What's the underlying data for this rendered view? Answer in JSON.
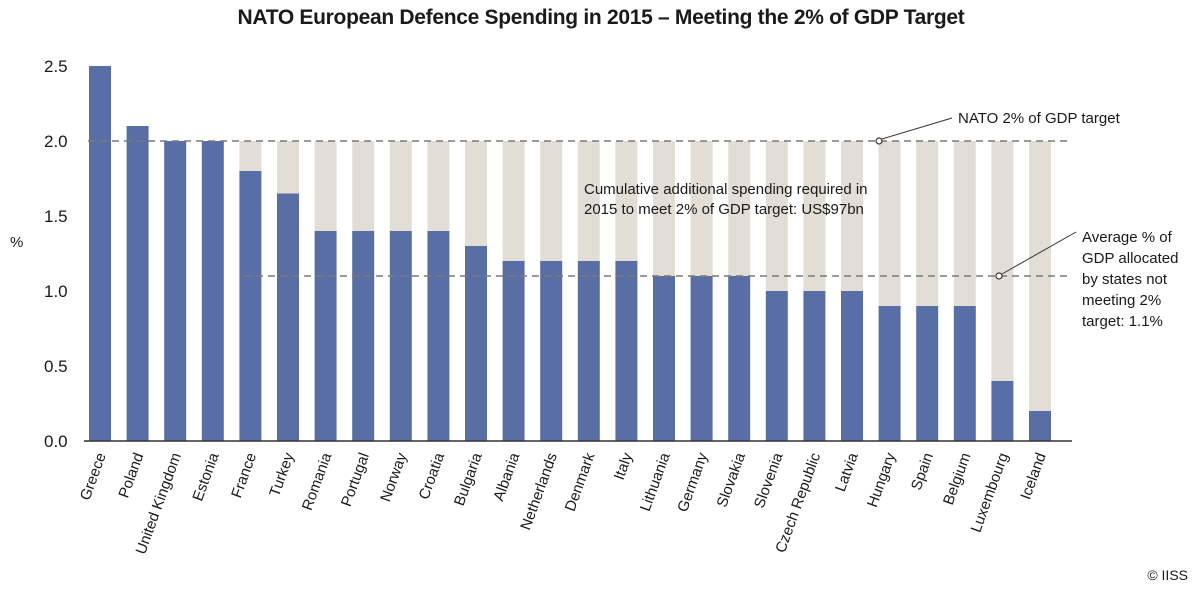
{
  "chart_data": {
    "type": "bar",
    "title": "NATO European Defence Spending in 2015 – Meeting the 2% of GDP Target",
    "ylabel": "%",
    "ylim": [
      0,
      2.5
    ],
    "yticks": [
      "0.0",
      "0.5",
      "1.0",
      "1.5",
      "2.0",
      "2.5"
    ],
    "categories": [
      "Greece",
      "Poland",
      "United Kingdom",
      "Estonia",
      "France",
      "Turkey",
      "Romania",
      "Portugal",
      "Norway",
      "Croatia",
      "Bulgaria",
      "Albania",
      "Netherlands",
      "Denmark",
      "Italy",
      "Lithuania",
      "Germany",
      "Slovakia",
      "Slovenia",
      "Czech Republic",
      "Latvia",
      "Hungary",
      "Spain",
      "Belgium",
      "Luxembourg",
      "Iceland"
    ],
    "series": [
      {
        "values": [
          2.5,
          2.1,
          2.0,
          2.0,
          1.8,
          1.65,
          1.4,
          1.4,
          1.4,
          1.4,
          1.3,
          1.2,
          1.2,
          1.2,
          1.2,
          1.1,
          1.1,
          1.1,
          1.0,
          1.0,
          1.0,
          0.9,
          0.9,
          0.9,
          0.4,
          0.2
        ]
      }
    ],
    "target_line": 2.0,
    "average_line": 1.1,
    "annotations": {
      "target": "NATO 2% of GDP target",
      "cumulative": [
        "Cumulative additional spending required in",
        "2015 to meet 2% of GDP target: US$97bn"
      ],
      "average": [
        "Average % of",
        "GDP allocated",
        "by states not",
        "meeting 2%",
        "target: 1.1%"
      ]
    },
    "colors": {
      "bar": "#5a6ea6",
      "gap": "#e2ddd5",
      "dash": "#7a7a7a",
      "axis": "#333333"
    },
    "grid": false,
    "legend": "none"
  },
  "credit": "© IISS"
}
